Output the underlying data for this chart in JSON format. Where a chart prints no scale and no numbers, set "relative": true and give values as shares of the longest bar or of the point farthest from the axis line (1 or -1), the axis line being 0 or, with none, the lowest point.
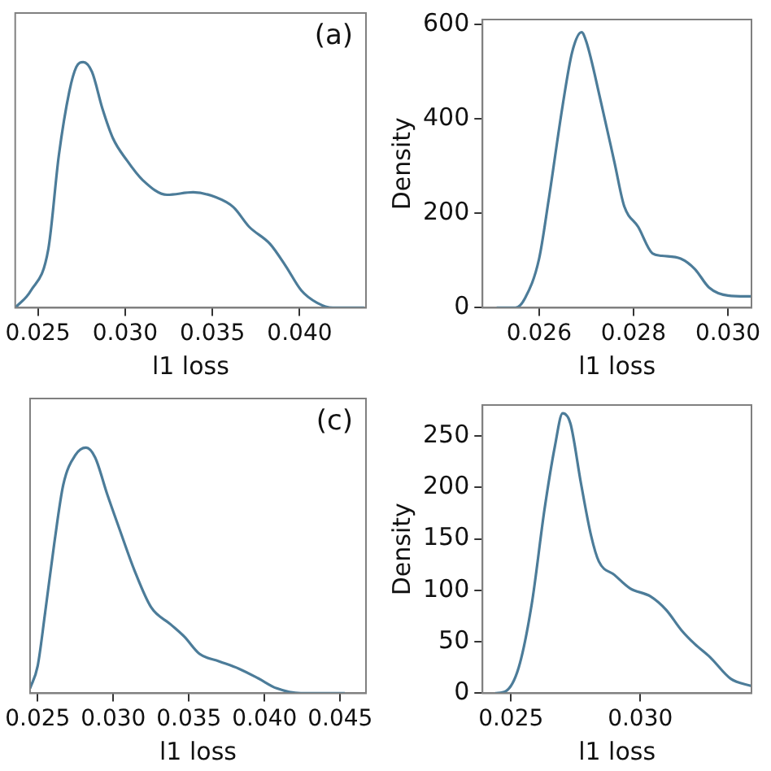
{
  "chart_data": [
    {
      "type": "line",
      "relative": true,
      "xlabel": "l1 loss",
      "annotations": [
        "(a)"
      ],
      "xlim": [
        0.0237,
        0.0438
      ],
      "xticks": [
        {
          "value": 0.025,
          "label": "0.025"
        },
        {
          "value": 0.03,
          "label": "0.030"
        },
        {
          "value": 0.035,
          "label": "0.035"
        },
        {
          "value": 0.04,
          "label": "0.040"
        }
      ],
      "grid": false,
      "series": [
        {
          "color": "#4c7c99",
          "x": [
            0.0237,
            0.0246,
            0.0256,
            0.0262,
            0.0268,
            0.0272,
            0.0276,
            0.0281,
            0.0287,
            0.0293,
            0.0301,
            0.031,
            0.0324,
            0.0339,
            0.0352,
            0.0362,
            0.0371,
            0.0383,
            0.0392,
            0.0401,
            0.041,
            0.0419,
            0.0437
          ],
          "values": [
            0,
            0.07,
            0.24,
            0.62,
            0.88,
            0.98,
            1,
            0.96,
            0.81,
            0.69,
            0.6,
            0.52,
            0.46,
            0.47,
            0.45,
            0.41,
            0.33,
            0.26,
            0.17,
            0.07,
            0.02,
            0,
            0
          ]
        }
      ]
    },
    {
      "type": "line",
      "xlabel": "l1 loss",
      "ylabel": "Density",
      "xlim": [
        0.0248,
        0.0305
      ],
      "ylim": [
        0,
        610
      ],
      "xticks": [
        {
          "value": 0.026,
          "label": "0.026"
        },
        {
          "value": 0.028,
          "label": "0.028"
        },
        {
          "value": 0.03,
          "label": "0.030"
        }
      ],
      "yticks": [
        0,
        200,
        400,
        600
      ],
      "grid": false,
      "series": [
        {
          "color": "#4c7c99",
          "x": [
            0.0251,
            0.0255,
            0.0257,
            0.026,
            0.0262,
            0.0265,
            0.0267,
            0.0269,
            0.027,
            0.0273,
            0.0276,
            0.0278,
            0.0281,
            0.0284,
            0.0286,
            0.029,
            0.0293,
            0.0296,
            0.03,
            0.0305
          ],
          "values": [
            0,
            0,
            20,
            104,
            227,
            429,
            541,
            583,
            563,
            440,
            306,
            216,
            171,
            115,
            110,
            104,
            82,
            43,
            26,
            24
          ]
        }
      ]
    },
    {
      "type": "line",
      "relative": true,
      "xlabel": "l1 loss",
      "annotations": [
        "(c)"
      ],
      "xlim": [
        0.0245,
        0.0467
      ],
      "xticks": [
        {
          "value": 0.025,
          "label": "0.025"
        },
        {
          "value": 0.03,
          "label": "0.030"
        },
        {
          "value": 0.035,
          "label": "0.035"
        },
        {
          "value": 0.04,
          "label": "0.040"
        },
        {
          "value": 0.045,
          "label": "0.045"
        }
      ],
      "grid": false,
      "series": [
        {
          "color": "#4c7c99",
          "x": [
            0.0245,
            0.025,
            0.0255,
            0.0261,
            0.0267,
            0.0275,
            0.0282,
            0.0288,
            0.0296,
            0.0304,
            0.0314,
            0.0325,
            0.0338,
            0.0347,
            0.0357,
            0.037,
            0.0383,
            0.0396,
            0.0408,
            0.0424,
            0.0453
          ],
          "values": [
            0.02,
            0.11,
            0.33,
            0.61,
            0.85,
            0.97,
            1,
            0.96,
            0.81,
            0.67,
            0.5,
            0.35,
            0.28,
            0.23,
            0.16,
            0.13,
            0.1,
            0.06,
            0.02,
            0,
            0
          ]
        }
      ]
    },
    {
      "type": "line",
      "xlabel": "l1 loss",
      "ylabel": "Density",
      "xlim": [
        0.0239,
        0.0343
      ],
      "ylim": [
        0,
        280
      ],
      "xticks": [
        {
          "value": 0.025,
          "label": "0.025"
        },
        {
          "value": 0.03,
          "label": "0.030"
        }
      ],
      "yticks": [
        0,
        50,
        100,
        150,
        200,
        250
      ],
      "grid": false,
      "series": [
        {
          "color": "#4c7c99",
          "x": [
            0.0244,
            0.0248,
            0.0253,
            0.0258,
            0.0263,
            0.0267,
            0.027,
            0.0273,
            0.0277,
            0.0281,
            0.0284,
            0.029,
            0.0296,
            0.0304,
            0.031,
            0.0316,
            0.0321,
            0.0327,
            0.0335,
            0.0343
          ],
          "values": [
            0,
            2,
            25,
            86,
            179,
            240,
            272,
            262,
            205,
            153,
            128,
            115,
            102,
            94,
            81,
            61,
            48,
            35,
            14,
            7
          ]
        }
      ]
    }
  ]
}
